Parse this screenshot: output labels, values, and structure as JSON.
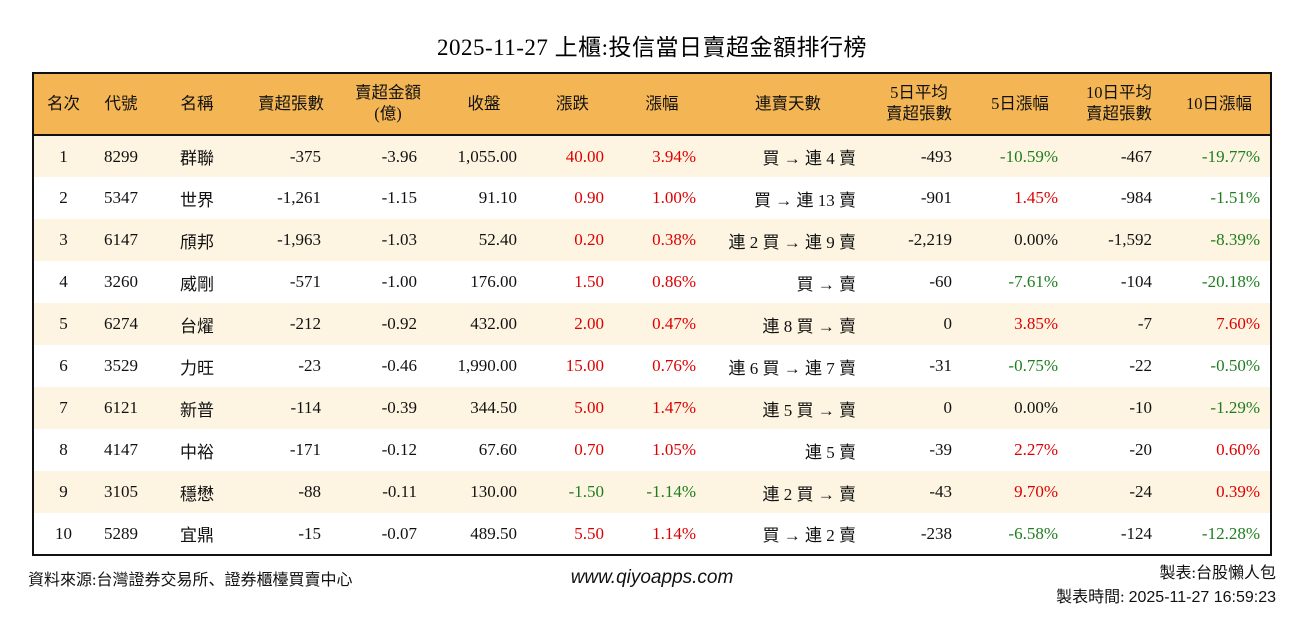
{
  "title": "2025-11-27 上櫃:投信當日賣超金額排行榜",
  "colors": {
    "up_red": "#dd0000",
    "down_green": "#1f7d1f",
    "header_bg": "#f4b654",
    "row_odd_bg": "#fdf5e2",
    "row_even_bg": "#ffffff",
    "table_border": "#111111"
  },
  "chart_data": {
    "type": "table",
    "title": "2025-11-27 上櫃:投信當日賣超金額排行榜",
    "columns": [
      "名次",
      "代號",
      "名稱",
      "賣超張數",
      "賣超金額\n(億)",
      "收盤",
      "漲跌",
      "漲幅",
      "連賣天數",
      "5日平均\n賣超張數",
      "5日漲幅",
      "10日平均\n賣超張數",
      "10日漲幅"
    ],
    "rows": [
      [
        {
          "t": "1"
        },
        {
          "t": "8299"
        },
        {
          "t": "群聯"
        },
        {
          "t": "-375"
        },
        {
          "t": "-3.96"
        },
        {
          "t": "1,055.00"
        },
        {
          "t": "40.00",
          "c": "up"
        },
        {
          "t": "3.94%",
          "c": "up"
        },
        {
          "t": "買 → 連 4 賣"
        },
        {
          "t": "-493"
        },
        {
          "t": "-10.59%",
          "c": "down"
        },
        {
          "t": "-467"
        },
        {
          "t": "-19.77%",
          "c": "down"
        }
      ],
      [
        {
          "t": "2"
        },
        {
          "t": "5347"
        },
        {
          "t": "世界"
        },
        {
          "t": "-1,261"
        },
        {
          "t": "-1.15"
        },
        {
          "t": "91.10"
        },
        {
          "t": "0.90",
          "c": "up"
        },
        {
          "t": "1.00%",
          "c": "up"
        },
        {
          "t": "買 → 連 13 賣"
        },
        {
          "t": "-901"
        },
        {
          "t": "1.45%",
          "c": "up"
        },
        {
          "t": "-984"
        },
        {
          "t": "-1.51%",
          "c": "down"
        }
      ],
      [
        {
          "t": "3"
        },
        {
          "t": "6147"
        },
        {
          "t": "頎邦"
        },
        {
          "t": "-1,963"
        },
        {
          "t": "-1.03"
        },
        {
          "t": "52.40"
        },
        {
          "t": "0.20",
          "c": "up"
        },
        {
          "t": "0.38%",
          "c": "up"
        },
        {
          "t": "連 2 買 → 連 9 賣"
        },
        {
          "t": "-2,219"
        },
        {
          "t": "0.00%"
        },
        {
          "t": "-1,592"
        },
        {
          "t": "-8.39%",
          "c": "down"
        }
      ],
      [
        {
          "t": "4"
        },
        {
          "t": "3260"
        },
        {
          "t": "威剛"
        },
        {
          "t": "-571"
        },
        {
          "t": "-1.00"
        },
        {
          "t": "176.00"
        },
        {
          "t": "1.50",
          "c": "up"
        },
        {
          "t": "0.86%",
          "c": "up"
        },
        {
          "t": "買 → 賣"
        },
        {
          "t": "-60"
        },
        {
          "t": "-7.61%",
          "c": "down"
        },
        {
          "t": "-104"
        },
        {
          "t": "-20.18%",
          "c": "down"
        }
      ],
      [
        {
          "t": "5"
        },
        {
          "t": "6274"
        },
        {
          "t": "台燿"
        },
        {
          "t": "-212"
        },
        {
          "t": "-0.92"
        },
        {
          "t": "432.00"
        },
        {
          "t": "2.00",
          "c": "up"
        },
        {
          "t": "0.47%",
          "c": "up"
        },
        {
          "t": "連 8 買 → 賣"
        },
        {
          "t": "0"
        },
        {
          "t": "3.85%",
          "c": "up"
        },
        {
          "t": "-7"
        },
        {
          "t": "7.60%",
          "c": "up"
        }
      ],
      [
        {
          "t": "6"
        },
        {
          "t": "3529"
        },
        {
          "t": "力旺"
        },
        {
          "t": "-23"
        },
        {
          "t": "-0.46"
        },
        {
          "t": "1,990.00"
        },
        {
          "t": "15.00",
          "c": "up"
        },
        {
          "t": "0.76%",
          "c": "up"
        },
        {
          "t": "連 6 買 → 連 7 賣"
        },
        {
          "t": "-31"
        },
        {
          "t": "-0.75%",
          "c": "down"
        },
        {
          "t": "-22"
        },
        {
          "t": "-0.50%",
          "c": "down"
        }
      ],
      [
        {
          "t": "7"
        },
        {
          "t": "6121"
        },
        {
          "t": "新普"
        },
        {
          "t": "-114"
        },
        {
          "t": "-0.39"
        },
        {
          "t": "344.50"
        },
        {
          "t": "5.00",
          "c": "up"
        },
        {
          "t": "1.47%",
          "c": "up"
        },
        {
          "t": "連 5 買 → 賣"
        },
        {
          "t": "0"
        },
        {
          "t": "0.00%"
        },
        {
          "t": "-10"
        },
        {
          "t": "-1.29%",
          "c": "down"
        }
      ],
      [
        {
          "t": "8"
        },
        {
          "t": "4147"
        },
        {
          "t": "中裕"
        },
        {
          "t": "-171"
        },
        {
          "t": "-0.12"
        },
        {
          "t": "67.60"
        },
        {
          "t": "0.70",
          "c": "up"
        },
        {
          "t": "1.05%",
          "c": "up"
        },
        {
          "t": "連 5 賣"
        },
        {
          "t": "-39"
        },
        {
          "t": "2.27%",
          "c": "up"
        },
        {
          "t": "-20"
        },
        {
          "t": "0.60%",
          "c": "up"
        }
      ],
      [
        {
          "t": "9"
        },
        {
          "t": "3105"
        },
        {
          "t": "穩懋"
        },
        {
          "t": "-88"
        },
        {
          "t": "-0.11"
        },
        {
          "t": "130.00"
        },
        {
          "t": "-1.50",
          "c": "down"
        },
        {
          "t": "-1.14%",
          "c": "down"
        },
        {
          "t": "連 2 買 → 賣"
        },
        {
          "t": "-43"
        },
        {
          "t": "9.70%",
          "c": "up"
        },
        {
          "t": "-24"
        },
        {
          "t": "0.39%",
          "c": "up"
        }
      ],
      [
        {
          "t": "10"
        },
        {
          "t": "5289"
        },
        {
          "t": "宜鼎"
        },
        {
          "t": "-15"
        },
        {
          "t": "-0.07"
        },
        {
          "t": "489.50"
        },
        {
          "t": "5.50",
          "c": "up"
        },
        {
          "t": "1.14%",
          "c": "up"
        },
        {
          "t": "買 → 連 2 賣"
        },
        {
          "t": "-238"
        },
        {
          "t": "-6.58%",
          "c": "down"
        },
        {
          "t": "-124"
        },
        {
          "t": "-12.28%",
          "c": "down"
        }
      ]
    ]
  },
  "footer": {
    "source": "資料來源:台灣證券交易所、證券櫃檯買賣中心",
    "website": "www.qiyoapps.com",
    "maker": "製表:台股懶人包",
    "made_time_label": "製表時間:",
    "made_time": "2025-11-27 16:59:23"
  }
}
